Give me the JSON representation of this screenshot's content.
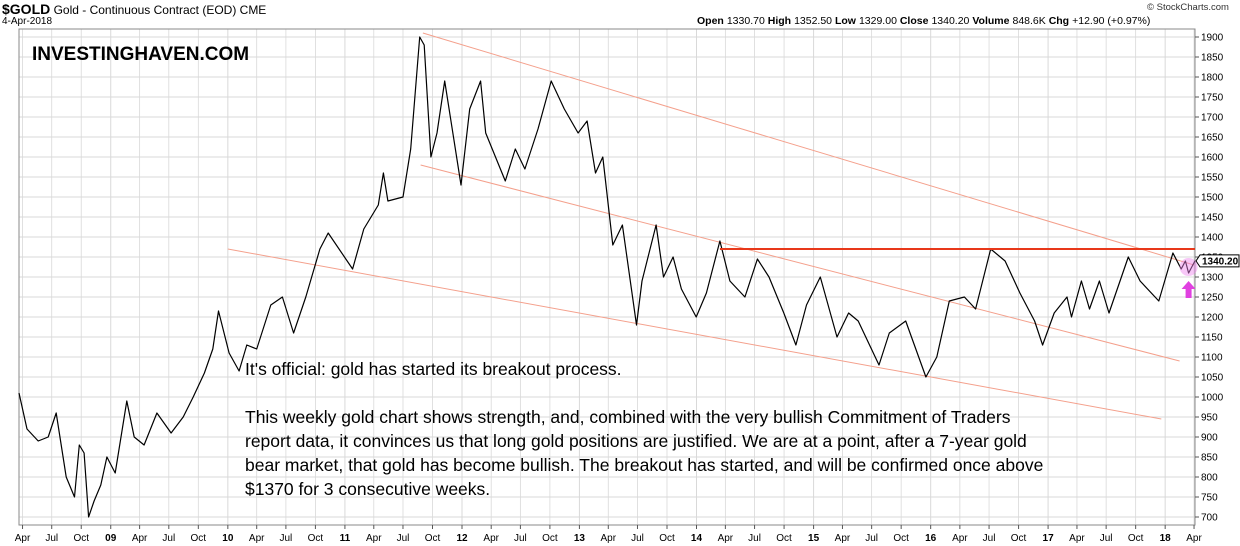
{
  "header": {
    "symbol": "$GOLD",
    "description": "Gold - Continuous Contract (EOD) CME",
    "date": "4-Apr-2018",
    "open_label": "Open",
    "open": "1330.70",
    "high_label": "High",
    "high": "1352.50",
    "low_label": "Low",
    "low": "1329.00",
    "close_label": "Close",
    "close": "1340.20",
    "volume_label": "Volume",
    "volume": "848.6K",
    "chg_label": "Chg",
    "chg": "+12.90 (+0.97%)",
    "copyright": "© StockCharts.com"
  },
  "brand": "INVESTINGHAVEN.COM",
  "notes": {
    "headline": "It's official: gold has started its breakout process.",
    "body": "This weekly gold chart shows strength, and, combined with the very bullish Commitment of Traders report data, it convinces us that long gold positions are justified. We are at a point, after a 7-year gold bear market, that gold has become bullish. The breakout has started, and will be confirmed once above $1370 for 3 consecutive weeks."
  },
  "colors": {
    "price_line": "#000000",
    "grid": "#d9d9d9",
    "resistance": "#e8381a",
    "channel": "#f4a08c",
    "highlight": "#ee82ee",
    "arrow": "#e040e0"
  },
  "chart_data": {
    "type": "line",
    "timeframe": "weekly",
    "x_range": [
      "2008-03-21",
      "2018-04-04"
    ],
    "ylim": [
      680,
      1920
    ],
    "y_ticks": [
      700,
      750,
      800,
      850,
      900,
      950,
      1000,
      1050,
      1100,
      1150,
      1200,
      1250,
      1300,
      1350,
      1400,
      1450,
      1500,
      1550,
      1600,
      1650,
      1700,
      1750,
      1800,
      1850,
      1900
    ],
    "x_ticks": [
      {
        "label": "Apr",
        "date": "2008-04-01",
        "year": false
      },
      {
        "label": "Jul",
        "date": "2008-07-01",
        "year": false
      },
      {
        "label": "Oct",
        "date": "2008-10-01",
        "year": false
      },
      {
        "label": "09",
        "date": "2009-01-01",
        "year": true
      },
      {
        "label": "Apr",
        "date": "2009-04-01",
        "year": false
      },
      {
        "label": "Jul",
        "date": "2009-07-01",
        "year": false
      },
      {
        "label": "Oct",
        "date": "2009-10-01",
        "year": false
      },
      {
        "label": "10",
        "date": "2010-01-01",
        "year": true
      },
      {
        "label": "Apr",
        "date": "2010-04-01",
        "year": false
      },
      {
        "label": "Jul",
        "date": "2010-07-01",
        "year": false
      },
      {
        "label": "Oct",
        "date": "2010-10-01",
        "year": false
      },
      {
        "label": "11",
        "date": "2011-01-01",
        "year": true
      },
      {
        "label": "Apr",
        "date": "2011-04-01",
        "year": false
      },
      {
        "label": "Jul",
        "date": "2011-07-01",
        "year": false
      },
      {
        "label": "Oct",
        "date": "2011-10-01",
        "year": false
      },
      {
        "label": "12",
        "date": "2012-01-01",
        "year": true
      },
      {
        "label": "Apr",
        "date": "2012-04-01",
        "year": false
      },
      {
        "label": "Jul",
        "date": "2012-07-01",
        "year": false
      },
      {
        "label": "Oct",
        "date": "2012-10-01",
        "year": false
      },
      {
        "label": "13",
        "date": "2013-01-01",
        "year": true
      },
      {
        "label": "Apr",
        "date": "2013-04-01",
        "year": false
      },
      {
        "label": "Jul",
        "date": "2013-07-01",
        "year": false
      },
      {
        "label": "Oct",
        "date": "2013-10-01",
        "year": false
      },
      {
        "label": "14",
        "date": "2014-01-01",
        "year": true
      },
      {
        "label": "Apr",
        "date": "2014-04-01",
        "year": false
      },
      {
        "label": "Jul",
        "date": "2014-07-01",
        "year": false
      },
      {
        "label": "Oct",
        "date": "2014-10-01",
        "year": false
      },
      {
        "label": "15",
        "date": "2015-01-01",
        "year": true
      },
      {
        "label": "Apr",
        "date": "2015-04-01",
        "year": false
      },
      {
        "label": "Jul",
        "date": "2015-07-01",
        "year": false
      },
      {
        "label": "Oct",
        "date": "2015-10-01",
        "year": false
      },
      {
        "label": "16",
        "date": "2016-01-01",
        "year": true
      },
      {
        "label": "Apr",
        "date": "2016-04-01",
        "year": false
      },
      {
        "label": "Jul",
        "date": "2016-07-01",
        "year": false
      },
      {
        "label": "Oct",
        "date": "2016-10-01",
        "year": false
      },
      {
        "label": "17",
        "date": "2017-01-01",
        "year": true
      },
      {
        "label": "Apr",
        "date": "2017-04-01",
        "year": false
      },
      {
        "label": "Jul",
        "date": "2017-07-01",
        "year": false
      },
      {
        "label": "Oct",
        "date": "2017-10-01",
        "year": false
      },
      {
        "label": "18",
        "date": "2018-01-01",
        "year": true
      },
      {
        "label": "Apr",
        "date": "2018-04-01",
        "year": false
      }
    ],
    "series": [
      {
        "points": [
          [
            "2008-03-21",
            1010
          ],
          [
            "2008-04-15",
            920
          ],
          [
            "2008-05-20",
            890
          ],
          [
            "2008-06-20",
            900
          ],
          [
            "2008-07-15",
            960
          ],
          [
            "2008-08-15",
            800
          ],
          [
            "2008-09-10",
            750
          ],
          [
            "2008-09-25",
            880
          ],
          [
            "2008-10-10",
            860
          ],
          [
            "2008-10-24",
            700
          ],
          [
            "2008-11-10",
            740
          ],
          [
            "2008-12-01",
            780
          ],
          [
            "2008-12-20",
            850
          ],
          [
            "2009-01-15",
            810
          ],
          [
            "2009-02-20",
            990
          ],
          [
            "2009-03-15",
            900
          ],
          [
            "2009-04-15",
            880
          ],
          [
            "2009-05-25",
            960
          ],
          [
            "2009-07-08",
            910
          ],
          [
            "2009-08-15",
            950
          ],
          [
            "2009-09-15",
            1000
          ],
          [
            "2009-10-20",
            1060
          ],
          [
            "2009-11-15",
            1120
          ],
          [
            "2009-12-03",
            1215
          ],
          [
            "2010-01-05",
            1110
          ],
          [
            "2010-02-05",
            1065
          ],
          [
            "2010-03-01",
            1130
          ],
          [
            "2010-04-01",
            1120
          ],
          [
            "2010-05-15",
            1230
          ],
          [
            "2010-06-20",
            1250
          ],
          [
            "2010-07-25",
            1160
          ],
          [
            "2010-09-01",
            1250
          ],
          [
            "2010-10-15",
            1370
          ],
          [
            "2010-11-10",
            1410
          ],
          [
            "2011-01-25",
            1320
          ],
          [
            "2011-03-01",
            1420
          ],
          [
            "2011-04-15",
            1480
          ],
          [
            "2011-05-01",
            1560
          ],
          [
            "2011-05-15",
            1490
          ],
          [
            "2011-07-01",
            1500
          ],
          [
            "2011-07-25",
            1620
          ],
          [
            "2011-08-22",
            1900
          ],
          [
            "2011-09-05",
            1880
          ],
          [
            "2011-09-26",
            1600
          ],
          [
            "2011-10-15",
            1660
          ],
          [
            "2011-11-08",
            1790
          ],
          [
            "2011-12-29",
            1530
          ],
          [
            "2012-01-25",
            1720
          ],
          [
            "2012-02-28",
            1790
          ],
          [
            "2012-03-15",
            1660
          ],
          [
            "2012-05-15",
            1540
          ],
          [
            "2012-06-15",
            1620
          ],
          [
            "2012-07-15",
            1570
          ],
          [
            "2012-08-25",
            1670
          ],
          [
            "2012-10-05",
            1790
          ],
          [
            "2012-11-15",
            1720
          ],
          [
            "2012-12-28",
            1660
          ],
          [
            "2013-01-25",
            1690
          ],
          [
            "2013-02-20",
            1560
          ],
          [
            "2013-03-15",
            1600
          ],
          [
            "2013-04-15",
            1380
          ],
          [
            "2013-05-15",
            1430
          ],
          [
            "2013-06-28",
            1180
          ],
          [
            "2013-07-15",
            1290
          ],
          [
            "2013-08-28",
            1430
          ],
          [
            "2013-09-20",
            1300
          ],
          [
            "2013-10-20",
            1350
          ],
          [
            "2013-11-15",
            1270
          ],
          [
            "2013-12-31",
            1200
          ],
          [
            "2014-02-01",
            1260
          ],
          [
            "2014-03-15",
            1390
          ],
          [
            "2014-04-15",
            1290
          ],
          [
            "2014-06-01",
            1250
          ],
          [
            "2014-07-10",
            1345
          ],
          [
            "2014-08-15",
            1300
          ],
          [
            "2014-09-30",
            1210
          ],
          [
            "2014-11-07",
            1130
          ],
          [
            "2014-12-10",
            1230
          ],
          [
            "2015-01-22",
            1300
          ],
          [
            "2015-03-15",
            1150
          ],
          [
            "2015-04-20",
            1210
          ],
          [
            "2015-05-20",
            1190
          ],
          [
            "2015-07-24",
            1080
          ],
          [
            "2015-08-25",
            1160
          ],
          [
            "2015-10-15",
            1190
          ],
          [
            "2015-12-17",
            1050
          ],
          [
            "2016-01-20",
            1100
          ],
          [
            "2016-02-28",
            1240
          ],
          [
            "2016-04-15",
            1250
          ],
          [
            "2016-05-20",
            1220
          ],
          [
            "2016-07-06",
            1370
          ],
          [
            "2016-08-20",
            1340
          ],
          [
            "2016-10-05",
            1260
          ],
          [
            "2016-11-20",
            1190
          ],
          [
            "2016-12-15",
            1130
          ],
          [
            "2017-01-20",
            1210
          ],
          [
            "2017-03-01",
            1250
          ],
          [
            "2017-03-15",
            1200
          ],
          [
            "2017-04-15",
            1290
          ],
          [
            "2017-05-10",
            1220
          ],
          [
            "2017-06-10",
            1290
          ],
          [
            "2017-07-10",
            1210
          ],
          [
            "2017-09-08",
            1350
          ],
          [
            "2017-10-15",
            1290
          ],
          [
            "2017-12-12",
            1240
          ],
          [
            "2018-01-25",
            1360
          ],
          [
            "2018-02-20",
            1320
          ],
          [
            "2018-03-05",
            1340
          ],
          [
            "2018-03-15",
            1310
          ],
          [
            "2018-04-04",
            1340.2
          ]
        ]
      }
    ],
    "last_value_label": "1340.20",
    "annotations": {
      "resistance": {
        "value": 1370,
        "from": "2014-03-15",
        "to": "2018-04-04"
      },
      "channel_lines": [
        {
          "from": [
            "2011-09-01",
            1910
          ],
          "to": [
            "2018-04-01",
            1330
          ]
        },
        {
          "from": [
            "2011-08-25",
            1580
          ],
          "to": [
            "2018-02-15",
            1090
          ]
        },
        {
          "from": [
            "2010-01-01",
            1370
          ],
          "to": [
            "2017-12-20",
            945
          ]
        }
      ],
      "highlight": {
        "date": "2018-03-15",
        "value": 1325
      },
      "arrow": {
        "date": "2018-03-15",
        "value": 1270
      }
    }
  }
}
